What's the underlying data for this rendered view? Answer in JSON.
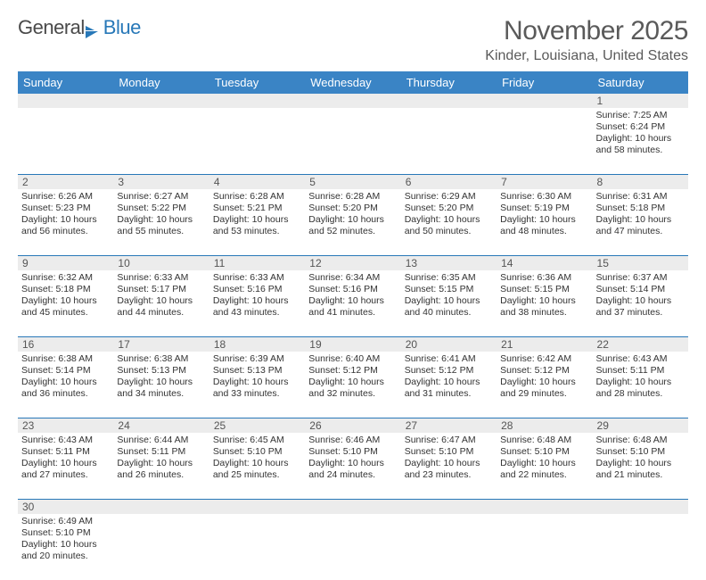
{
  "logo": {
    "part1": "General",
    "part2": "Blue"
  },
  "title": "November 2025",
  "location": "Kinder, Louisiana, United States",
  "colors": {
    "header_bg": "#3a84c5",
    "accent": "#2878b8",
    "daynum_bg": "#ececec",
    "text": "#333333",
    "title_text": "#5a5a5a"
  },
  "day_names": [
    "Sunday",
    "Monday",
    "Tuesday",
    "Wednesday",
    "Thursday",
    "Friday",
    "Saturday"
  ],
  "weeks": [
    {
      "nums": [
        "",
        "",
        "",
        "",
        "",
        "",
        "1"
      ],
      "cells": [
        null,
        null,
        null,
        null,
        null,
        null,
        {
          "sunrise": "Sunrise: 7:25 AM",
          "sunset": "Sunset: 6:24 PM",
          "daylight": "Daylight: 10 hours and 58 minutes."
        }
      ]
    },
    {
      "nums": [
        "2",
        "3",
        "4",
        "5",
        "6",
        "7",
        "8"
      ],
      "cells": [
        {
          "sunrise": "Sunrise: 6:26 AM",
          "sunset": "Sunset: 5:23 PM",
          "daylight": "Daylight: 10 hours and 56 minutes."
        },
        {
          "sunrise": "Sunrise: 6:27 AM",
          "sunset": "Sunset: 5:22 PM",
          "daylight": "Daylight: 10 hours and 55 minutes."
        },
        {
          "sunrise": "Sunrise: 6:28 AM",
          "sunset": "Sunset: 5:21 PM",
          "daylight": "Daylight: 10 hours and 53 minutes."
        },
        {
          "sunrise": "Sunrise: 6:28 AM",
          "sunset": "Sunset: 5:20 PM",
          "daylight": "Daylight: 10 hours and 52 minutes."
        },
        {
          "sunrise": "Sunrise: 6:29 AM",
          "sunset": "Sunset: 5:20 PM",
          "daylight": "Daylight: 10 hours and 50 minutes."
        },
        {
          "sunrise": "Sunrise: 6:30 AM",
          "sunset": "Sunset: 5:19 PM",
          "daylight": "Daylight: 10 hours and 48 minutes."
        },
        {
          "sunrise": "Sunrise: 6:31 AM",
          "sunset": "Sunset: 5:18 PM",
          "daylight": "Daylight: 10 hours and 47 minutes."
        }
      ]
    },
    {
      "nums": [
        "9",
        "10",
        "11",
        "12",
        "13",
        "14",
        "15"
      ],
      "cells": [
        {
          "sunrise": "Sunrise: 6:32 AM",
          "sunset": "Sunset: 5:18 PM",
          "daylight": "Daylight: 10 hours and 45 minutes."
        },
        {
          "sunrise": "Sunrise: 6:33 AM",
          "sunset": "Sunset: 5:17 PM",
          "daylight": "Daylight: 10 hours and 44 minutes."
        },
        {
          "sunrise": "Sunrise: 6:33 AM",
          "sunset": "Sunset: 5:16 PM",
          "daylight": "Daylight: 10 hours and 43 minutes."
        },
        {
          "sunrise": "Sunrise: 6:34 AM",
          "sunset": "Sunset: 5:16 PM",
          "daylight": "Daylight: 10 hours and 41 minutes."
        },
        {
          "sunrise": "Sunrise: 6:35 AM",
          "sunset": "Sunset: 5:15 PM",
          "daylight": "Daylight: 10 hours and 40 minutes."
        },
        {
          "sunrise": "Sunrise: 6:36 AM",
          "sunset": "Sunset: 5:15 PM",
          "daylight": "Daylight: 10 hours and 38 minutes."
        },
        {
          "sunrise": "Sunrise: 6:37 AM",
          "sunset": "Sunset: 5:14 PM",
          "daylight": "Daylight: 10 hours and 37 minutes."
        }
      ]
    },
    {
      "nums": [
        "16",
        "17",
        "18",
        "19",
        "20",
        "21",
        "22"
      ],
      "cells": [
        {
          "sunrise": "Sunrise: 6:38 AM",
          "sunset": "Sunset: 5:14 PM",
          "daylight": "Daylight: 10 hours and 36 minutes."
        },
        {
          "sunrise": "Sunrise: 6:38 AM",
          "sunset": "Sunset: 5:13 PM",
          "daylight": "Daylight: 10 hours and 34 minutes."
        },
        {
          "sunrise": "Sunrise: 6:39 AM",
          "sunset": "Sunset: 5:13 PM",
          "daylight": "Daylight: 10 hours and 33 minutes."
        },
        {
          "sunrise": "Sunrise: 6:40 AM",
          "sunset": "Sunset: 5:12 PM",
          "daylight": "Daylight: 10 hours and 32 minutes."
        },
        {
          "sunrise": "Sunrise: 6:41 AM",
          "sunset": "Sunset: 5:12 PM",
          "daylight": "Daylight: 10 hours and 31 minutes."
        },
        {
          "sunrise": "Sunrise: 6:42 AM",
          "sunset": "Sunset: 5:12 PM",
          "daylight": "Daylight: 10 hours and 29 minutes."
        },
        {
          "sunrise": "Sunrise: 6:43 AM",
          "sunset": "Sunset: 5:11 PM",
          "daylight": "Daylight: 10 hours and 28 minutes."
        }
      ]
    },
    {
      "nums": [
        "23",
        "24",
        "25",
        "26",
        "27",
        "28",
        "29"
      ],
      "cells": [
        {
          "sunrise": "Sunrise: 6:43 AM",
          "sunset": "Sunset: 5:11 PM",
          "daylight": "Daylight: 10 hours and 27 minutes."
        },
        {
          "sunrise": "Sunrise: 6:44 AM",
          "sunset": "Sunset: 5:11 PM",
          "daylight": "Daylight: 10 hours and 26 minutes."
        },
        {
          "sunrise": "Sunrise: 6:45 AM",
          "sunset": "Sunset: 5:10 PM",
          "daylight": "Daylight: 10 hours and 25 minutes."
        },
        {
          "sunrise": "Sunrise: 6:46 AM",
          "sunset": "Sunset: 5:10 PM",
          "daylight": "Daylight: 10 hours and 24 minutes."
        },
        {
          "sunrise": "Sunrise: 6:47 AM",
          "sunset": "Sunset: 5:10 PM",
          "daylight": "Daylight: 10 hours and 23 minutes."
        },
        {
          "sunrise": "Sunrise: 6:48 AM",
          "sunset": "Sunset: 5:10 PM",
          "daylight": "Daylight: 10 hours and 22 minutes."
        },
        {
          "sunrise": "Sunrise: 6:48 AM",
          "sunset": "Sunset: 5:10 PM",
          "daylight": "Daylight: 10 hours and 21 minutes."
        }
      ]
    },
    {
      "nums": [
        "30",
        "",
        "",
        "",
        "",
        "",
        ""
      ],
      "cells": [
        {
          "sunrise": "Sunrise: 6:49 AM",
          "sunset": "Sunset: 5:10 PM",
          "daylight": "Daylight: 10 hours and 20 minutes."
        },
        null,
        null,
        null,
        null,
        null,
        null
      ]
    }
  ]
}
